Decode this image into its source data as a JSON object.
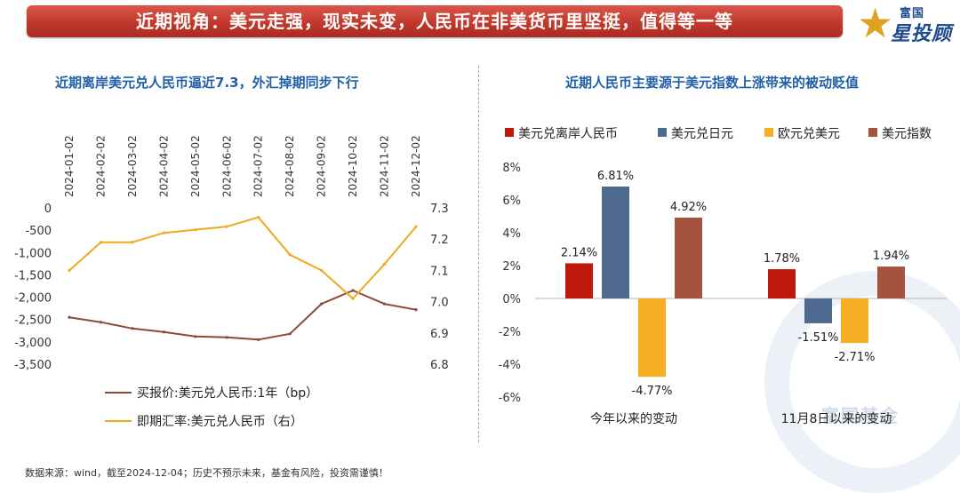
{
  "banner": {
    "title": "近期视角：美元走强，现实未变，人民币在非美货币里坚挺，值得等一等"
  },
  "logo": {
    "top": "富国",
    "main": "星投顾"
  },
  "left_title": "近期离岸美元兑人民币逼近7.3，外汇掉期同步下行",
  "right_title": "近期人民币主要源于美元指数上涨带来的被动贬值",
  "footer": "数据来源：wind，截至2024-12-04；历史不预示未来，基金有风险，投资需谨慎！",
  "watermark": "富国基金",
  "colors": {
    "swap": "#8a4a34",
    "spot": "#f2a81c",
    "cnh": "#c0180c",
    "jpy": "#4e6b8f",
    "eur": "#f6ae24",
    "dxy": "#a5523f",
    "title_blue": "#1f5fa8"
  },
  "chart_data": [
    {
      "type": "line",
      "title": "近期离岸美元兑人民币逼近7.3，外汇掉期同步下行",
      "x": [
        "2024-01-02",
        "2024-02-02",
        "2024-03-02",
        "2024-04-02",
        "2024-05-02",
        "2024-06-02",
        "2024-07-02",
        "2024-08-02",
        "2024-09-02",
        "2024-10-02",
        "2024-11-02",
        "2024-12-02"
      ],
      "x_ticks": [
        "2024-01-02",
        "2024-02-02",
        "2024-03-02",
        "2024-04-02",
        "2024-05-02",
        "2024-06-02",
        "2024-07-02",
        "2024-08-02",
        "2024-09-02",
        "2024-10-02",
        "2024-11-02",
        "2024-12-02"
      ],
      "y_left": {
        "ylim": [
          -3500,
          0
        ],
        "ticks": [
          "0",
          "-500",
          "-1,000",
          "-1,500",
          "-2,000",
          "-2,500",
          "-3,000",
          "-3,500"
        ]
      },
      "y_right": {
        "ylim": [
          6.8,
          7.3
        ],
        "ticks": [
          "7.3",
          "7.2",
          "7.1",
          "7.0",
          "6.9",
          "6.8"
        ]
      },
      "series": [
        {
          "name": "买报价:美元兑人民币:1年（bp）",
          "axis": "left",
          "values": [
            -2450,
            -2560,
            -2700,
            -2780,
            -2880,
            -2900,
            -2950,
            -2820,
            -2150,
            -1850,
            -2150,
            -2280
          ]
        },
        {
          "name": "即期汇率:美元兑人民币（右）",
          "axis": "right",
          "values": [
            7.1,
            7.19,
            7.19,
            7.22,
            7.23,
            7.24,
            7.27,
            7.15,
            7.1,
            7.01,
            7.12,
            7.24
          ]
        }
      ],
      "legend": [
        "买报价:美元兑人民币:1年（bp）",
        "即期汇率:美元兑人民币（右）"
      ],
      "legend_position": "bottom"
    },
    {
      "type": "bar",
      "title": "近期人民币主要源于美元指数上涨带来的被动贬值",
      "categories": [
        "今年以来的变动",
        "11月8日以来的变动"
      ],
      "ylim": [
        -6,
        8
      ],
      "y_ticks": [
        "8%",
        "6%",
        "4%",
        "2%",
        "0%",
        "-2%",
        "-4%",
        "-6%"
      ],
      "series": [
        {
          "name": "美元兑离岸人民币",
          "values": [
            2.14,
            1.78
          ],
          "labels": [
            "2.14%",
            "1.78%"
          ]
        },
        {
          "name": "美元兑日元",
          "values": [
            6.81,
            -1.51
          ],
          "labels": [
            "6.81%",
            "-1.51%"
          ]
        },
        {
          "name": "欧元兑美元",
          "values": [
            -4.77,
            -2.71
          ],
          "labels": [
            "-4.77%",
            "-2.71%"
          ]
        },
        {
          "name": "美元指数",
          "values": [
            4.92,
            1.94
          ],
          "labels": [
            "4.92%",
            "1.94%"
          ]
        }
      ],
      "legend_position": "top"
    }
  ]
}
